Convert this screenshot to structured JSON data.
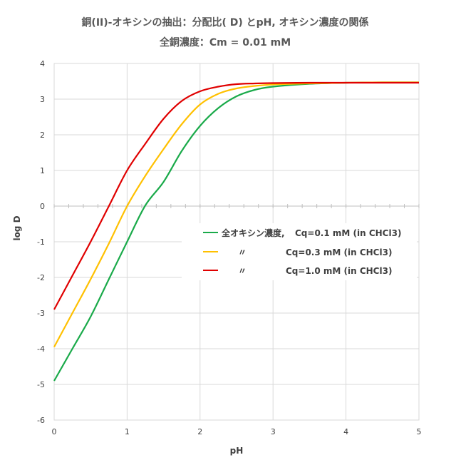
{
  "chart_data": {
    "type": "line",
    "title": "銅(II)-オキシンの抽出：分配比( D) とpH, オキシン濃度の関係",
    "subtitle": "全銅濃度：Cm = 0.01 mM",
    "xlabel": "pH",
    "ylabel": "log D",
    "xlim": [
      0,
      5
    ],
    "ylim": [
      -6,
      4
    ],
    "xticks": [
      "0",
      "1",
      "2",
      "3",
      "4",
      "5"
    ],
    "yticks": [
      "4",
      "3",
      "2",
      "1",
      "0",
      "-1",
      "-2",
      "-3",
      "-4",
      "-5",
      "-6"
    ],
    "grid": true,
    "legend_position": "center-right",
    "series": [
      {
        "name": "全オキシン濃度, Cq=0.1 mM (in CHCl3)",
        "legend_prefix": "全オキシン濃度,",
        "legend_value": "Cq=0.1 mM (in CHCl3)",
        "color": "#1aaa4a",
        "x": [
          0,
          0.25,
          0.5,
          0.75,
          1.0,
          1.25,
          1.5,
          1.75,
          2.0,
          2.25,
          2.5,
          2.75,
          3.0,
          3.5,
          4.0,
          4.5,
          5.0
        ],
        "y": [
          -4.9,
          -4.0,
          -3.1,
          -2.05,
          -1.0,
          0.02,
          0.68,
          1.55,
          2.25,
          2.75,
          3.08,
          3.26,
          3.35,
          3.43,
          3.46,
          3.47,
          3.47
        ]
      },
      {
        "name": "〃 Cq=0.3 mM (in CHCl3)",
        "legend_prefix": "〃",
        "legend_value": "Cq=0.3 mM (in CHCl3)",
        "color": "#ffc000",
        "x": [
          0,
          0.25,
          0.5,
          0.75,
          1.0,
          1.25,
          1.5,
          1.75,
          2.0,
          2.25,
          2.5,
          2.75,
          3.0,
          3.5,
          4.0,
          4.5,
          5.0
        ],
        "y": [
          -3.95,
          -3.0,
          -2.05,
          -1.05,
          0.0,
          0.85,
          1.6,
          2.3,
          2.85,
          3.15,
          3.3,
          3.37,
          3.41,
          3.44,
          3.46,
          3.47,
          3.47
        ]
      },
      {
        "name": "〃 Cq=1.0 mM (in CHCl3)",
        "legend_prefix": "〃",
        "legend_value": "Cq=1.0 mM (in CHCl3)",
        "color": "#e00000",
        "x": [
          0,
          0.25,
          0.5,
          0.75,
          1.0,
          1.25,
          1.5,
          1.75,
          2.0,
          2.25,
          2.5,
          2.75,
          3.0,
          3.5,
          4.0,
          4.5,
          5.0
        ],
        "y": [
          -2.9,
          -1.95,
          -1.0,
          0.0,
          1.0,
          1.75,
          2.45,
          2.95,
          3.22,
          3.35,
          3.42,
          3.44,
          3.45,
          3.46,
          3.46,
          3.46,
          3.46
        ]
      }
    ]
  }
}
